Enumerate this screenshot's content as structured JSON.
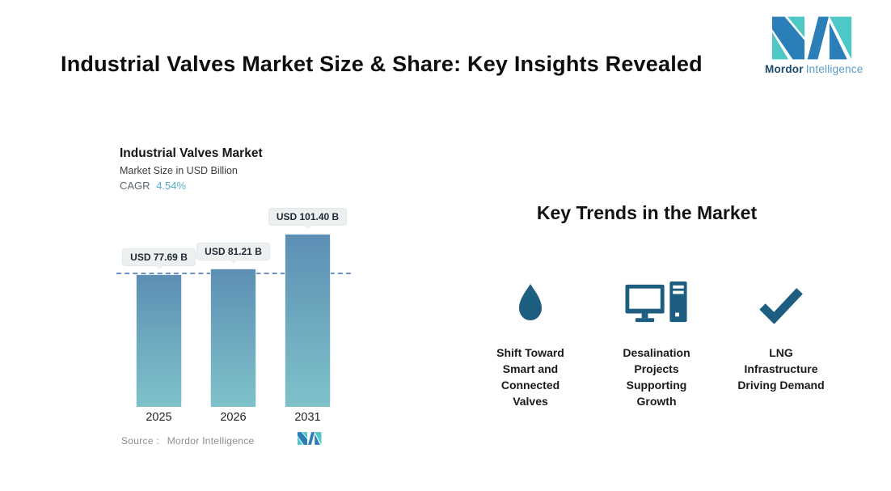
{
  "page": {
    "title": "Industrial Valves Market Size & Share: Key Insights Revealed",
    "background": "#FFFFFF"
  },
  "brand": {
    "name_primary": "Mordor",
    "name_secondary": "Intelligence",
    "colors": {
      "teal": "#4EC8C6",
      "blue": "#2A7FB8",
      "name_primary_color": "#1B4B6E",
      "name_secondary_color": "#5A9BC8"
    }
  },
  "chart": {
    "title": "Industrial Valves Market",
    "subtitle": "Market Size in USD Billion",
    "cagr_label": "CAGR",
    "cagr_value": "4.54%",
    "cagr_value_color": "#55ABC8",
    "source_label": "Source :",
    "source_value": "Mordor Intelligence"
  },
  "chart_data": {
    "type": "bar",
    "categories": [
      "2025",
      "2026",
      "2031"
    ],
    "values": [
      77.69,
      81.21,
      101.4
    ],
    "value_labels": [
      "USD 77.69 B",
      "USD 81.21 B",
      "USD 101.40 B"
    ],
    "title": "Industrial Valves Market",
    "ylabel": "Market Size in USD Billion",
    "cagr": "4.54%",
    "ylim": [
      0,
      110
    ],
    "grid": "off",
    "legend": "none",
    "reference_line_value": 77.69,
    "reference_line_style": "dashed",
    "reference_line_color": "#6B93C9",
    "bar_gradient": [
      "#5D8FB4",
      "#7FC2CA"
    ],
    "callout_bg": "#EDF0F1"
  },
  "trends": {
    "heading": "Key Trends in the Market",
    "icon_color": "#1D5E80",
    "items": [
      {
        "icon": "water-drop-icon",
        "label": "Shift Toward Smart and Connected Valves"
      },
      {
        "icon": "desktop-computer-icon",
        "label": "Desalination Projects Supporting Growth"
      },
      {
        "icon": "checkmark-icon",
        "label": "LNG Infrastructure Driving Demand"
      }
    ]
  }
}
